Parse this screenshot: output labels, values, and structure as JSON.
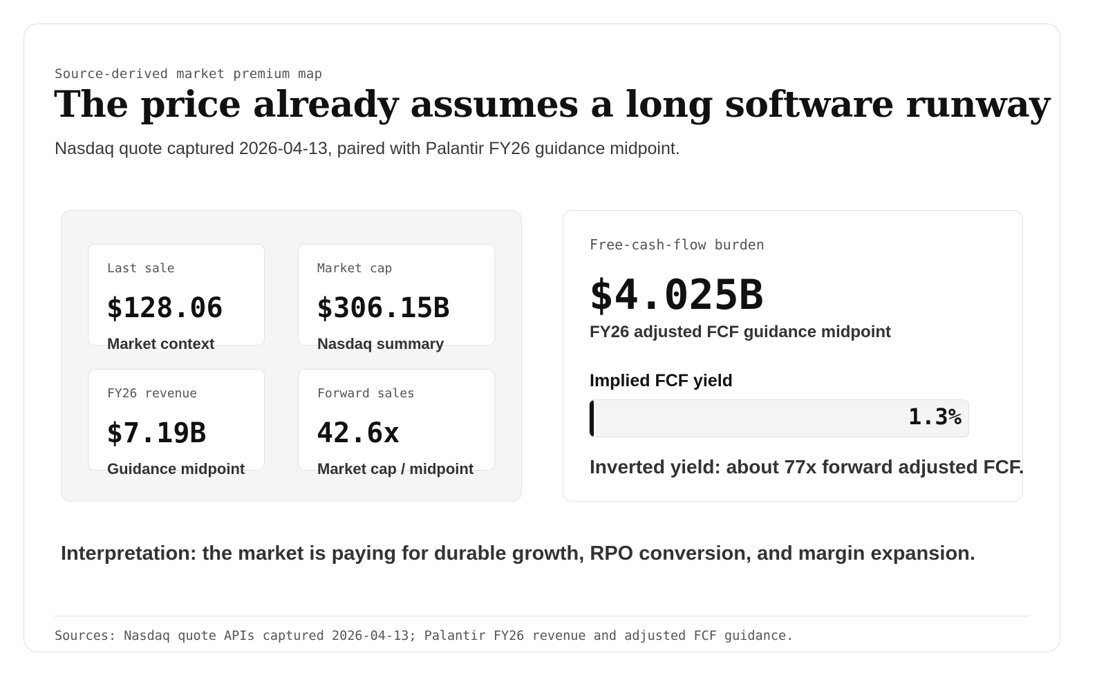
{
  "header": {
    "kicker": "Source-derived market premium map",
    "title": "The price already assumes a long software runway",
    "subtitle": "Nasdaq quote captured 2026-04-13, paired with Palantir FY26 guidance midpoint."
  },
  "metrics": [
    {
      "label": "Last sale",
      "value": "$128.06",
      "note": "Market context"
    },
    {
      "label": "Market cap",
      "value": "$306.15B",
      "note": "Nasdaq summary"
    },
    {
      "label": "FY26 revenue",
      "value": "$7.19B",
      "note": "Guidance midpoint"
    },
    {
      "label": "Forward sales",
      "value": "42.6x",
      "note": "Market cap / midpoint"
    }
  ],
  "fcf": {
    "label": "Free-cash-flow burden",
    "value": "$4.025B",
    "note": "FY26 adjusted FCF guidance midpoint",
    "yield_label": "Implied FCF yield",
    "yield_value": "1.3%",
    "yield_fraction": 0.013,
    "inverted_note": "Inverted yield: about 77x forward adjusted FCF."
  },
  "interpretation": "Interpretation: the market is paying for durable growth, RPO conversion, and margin expansion.",
  "sources": "Sources: Nasdaq quote APIs captured 2026-04-13; Palantir FY26 revenue and adjusted FCF guidance."
}
